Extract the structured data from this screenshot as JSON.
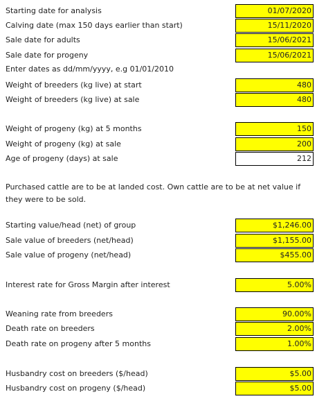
{
  "fields": [
    {
      "label": "Starting date for analysis",
      "value": "01/07/2020",
      "color": "#ffff00"
    },
    {
      "label": "Calving date (max 150 days earlier than start)",
      "value": "15/11/2020",
      "color": "#ffff00"
    },
    {
      "label": "Sale date for adults",
      "value": "15/06/2021",
      "color": "#ffff00"
    },
    {
      "label": "Sale date for progeny",
      "value": "15/06/2021",
      "color": "#ffff00"
    },
    {
      "label": "Weight of breeders (kg live) at start",
      "value": "480",
      "color": "#ffff00"
    },
    {
      "label": "Weight of breeders (kg live) at sale",
      "value": "480",
      "color": "#ffff00"
    },
    {
      "label": "Weight of progeny (kg) at 5 months",
      "value": "150",
      "color": "#ffff00"
    },
    {
      "label": "Weight of progeny (kg) at sale",
      "value": "200",
      "color": "#ffff00"
    },
    {
      "label": "Age of progeny (days) at sale",
      "value": "212",
      "color": "#ffffff"
    },
    {
      "label": "Starting value/head (net) of group",
      "value": "$1,246.00",
      "color": "#ffff00"
    },
    {
      "label": "Sale value of breeders (net/head)",
      "value": "$1,155.00",
      "color": "#ffff00"
    },
    {
      "label": "Sale value of progeny (net/head)",
      "value": "$455.00",
      "color": "#ffff00"
    },
    {
      "label": "Interest rate for Gross Margin after interest",
      "value": "5.00%",
      "color": "#ffff00"
    },
    {
      "label": "Weaning rate from breeders",
      "value": "90.00%",
      "color": "#ffff00"
    },
    {
      "label": "Death rate on breeders",
      "value": "2.00%",
      "color": "#ffff00"
    },
    {
      "label": "Death rate on progeny after 5 months",
      "value": "1.00%",
      "color": "#ffff00"
    },
    {
      "label": "Husbandry cost on breeders ($/head)",
      "value": "$5.00",
      "color": "#ffff00"
    },
    {
      "label": "Husbandry cost on progeny ($/head)",
      "value": "$5.00",
      "color": "#ffff00"
    }
  ],
  "date_note": "Enter dates as dd/mm/yyyy, e.g 01/01/2010",
  "cost_note": "Purchased cattle are to be at landed cost. Own cattle are to be at net value if they were to be sold."
}
